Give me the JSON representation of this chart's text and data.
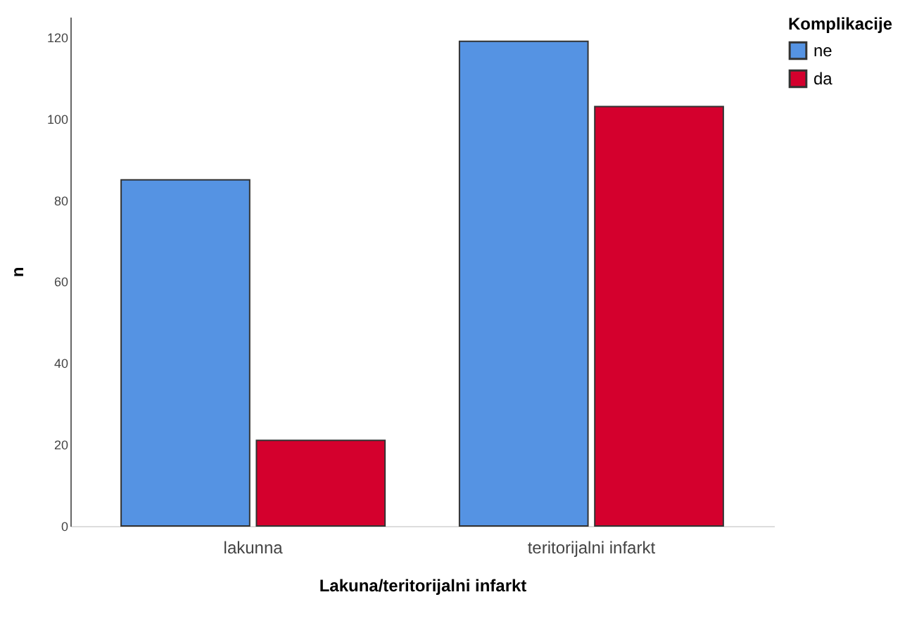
{
  "chart_data": {
    "type": "bar",
    "xlabel": "Lakuna/teritorijalni infarkt",
    "ylabel": "n",
    "legend_title": "Komplikacije",
    "categories": [
      "lakunna",
      "teritorijalni infarkt"
    ],
    "series": [
      {
        "name": "ne",
        "color": "#5593e3",
        "values": [
          85,
          119
        ]
      },
      {
        "name": "da",
        "color": "#d4002d",
        "values": [
          21,
          103
        ]
      }
    ],
    "ylim": [
      0,
      125
    ],
    "yticks": [
      0,
      20,
      40,
      60,
      80,
      100,
      120
    ],
    "grid": false,
    "legend": "top right"
  }
}
